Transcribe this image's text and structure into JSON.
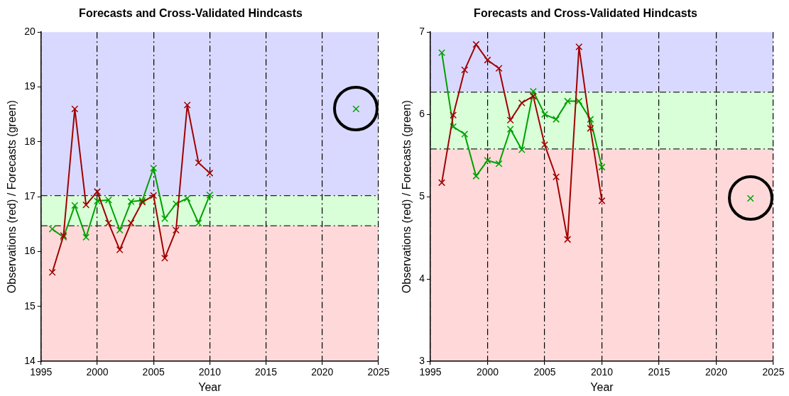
{
  "chart_data": [
    {
      "type": "line",
      "title": "Forecasts and Cross-Validated Hindcasts",
      "xlabel": "Year",
      "ylabel": "Observations (red) / Forecasts (green)",
      "x": [
        1996,
        1997,
        1998,
        1999,
        2000,
        2001,
        2002,
        2003,
        2004,
        2005,
        2006,
        2007,
        2008,
        2009,
        2010
      ],
      "series": [
        {
          "type": "line",
          "color": "#a00000",
          "values": [
            15.62,
            16.29,
            18.6,
            16.85,
            17.09,
            16.52,
            16.03,
            16.52,
            16.9,
            17.02,
            15.88,
            16.39,
            18.67,
            17.62,
            17.43
          ]
        },
        {
          "type": "line",
          "color": "#00a000",
          "values": [
            16.41,
            16.26,
            16.84,
            16.26,
            16.92,
            16.94,
            16.39,
            16.91,
            16.93,
            17.52,
            16.6,
            16.87,
            16.97,
            16.52,
            17.03
          ]
        },
        {
          "type": "scatter",
          "color": "#00a000",
          "x": [
            2023
          ],
          "values": [
            18.6
          ]
        }
      ],
      "xlim": [
        1995,
        2025
      ],
      "xticks": [
        1995,
        2000,
        2005,
        2010,
        2015,
        2020,
        2025
      ],
      "ylim": [
        14,
        20
      ],
      "yticks": [
        14,
        15,
        16,
        17,
        18,
        19,
        20
      ],
      "bands": [
        {
          "axis": "y",
          "from": 14,
          "to": 16.47,
          "color": "#ffd9d9"
        },
        {
          "axis": "y",
          "from": 16.47,
          "to": 17.02,
          "color": "#d9ffd9"
        },
        {
          "axis": "y",
          "from": 17.02,
          "to": 20,
          "color": "#d9d9ff"
        }
      ],
      "ref_lines": [
        {
          "axis": "y",
          "value": 16.47,
          "color": "#222222",
          "line_style": "dashed"
        },
        {
          "axis": "y",
          "value": 17.02,
          "color": "#222222",
          "line_style": "dashed"
        }
      ],
      "grid": "x",
      "marker": "cross",
      "legend": false
    },
    {
      "type": "line",
      "title": "Forecasts and Cross-Validated Hindcasts",
      "xlabel": "Year",
      "ylabel": "Observations (red) / Forecasts (green)",
      "x": [
        1996,
        1997,
        1998,
        1999,
        2000,
        2001,
        2002,
        2003,
        2004,
        2005,
        2006,
        2007,
        2008,
        2009,
        2010
      ],
      "series": [
        {
          "type": "line",
          "color": "#a00000",
          "values": [
            5.17,
            5.99,
            6.54,
            6.85,
            6.66,
            6.56,
            5.93,
            6.14,
            6.22,
            5.63,
            5.24,
            4.48,
            6.82,
            5.83,
            4.95
          ]
        },
        {
          "type": "line",
          "color": "#00a000",
          "values": [
            6.75,
            5.85,
            5.76,
            5.25,
            5.44,
            5.4,
            5.82,
            5.57,
            6.28,
            6.0,
            5.94,
            6.16,
            6.16,
            5.94,
            5.36
          ]
        },
        {
          "type": "scatter",
          "color": "#00a000",
          "x": [
            2023
          ],
          "values": [
            4.98
          ]
        }
      ],
      "xlim": [
        1995,
        2025
      ],
      "xticks": [
        1995,
        2000,
        2005,
        2010,
        2015,
        2020,
        2025
      ],
      "ylim": [
        3,
        7
      ],
      "yticks": [
        3,
        4,
        5,
        6,
        7
      ],
      "bands": [
        {
          "axis": "y",
          "from": 3,
          "to": 5.58,
          "color": "#ffd9d9"
        },
        {
          "axis": "y",
          "from": 5.58,
          "to": 6.27,
          "color": "#d9ffd9"
        },
        {
          "axis": "y",
          "from": 6.27,
          "to": 7,
          "color": "#d9d9ff"
        }
      ],
      "ref_lines": [
        {
          "axis": "y",
          "value": 5.58,
          "color": "#222222",
          "line_style": "dashed"
        },
        {
          "axis": "y",
          "value": 6.27,
          "color": "#222222",
          "line_style": "dashed"
        }
      ],
      "grid": "x",
      "marker": "cross",
      "legend": false
    }
  ]
}
